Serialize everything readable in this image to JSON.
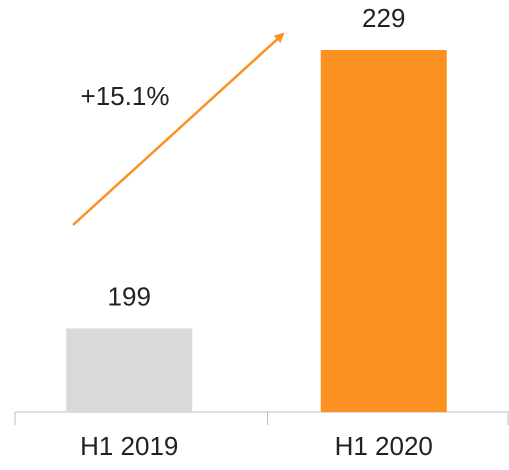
{
  "chart_data": {
    "type": "bar",
    "categories": [
      "H1 2019",
      "H1 2020"
    ],
    "values": [
      199,
      229
    ],
    "colors": [
      "#d9d9d9",
      "#fb9120"
    ],
    "ylim": [
      190,
      230
    ],
    "annotations": [
      {
        "text": "+15.1%"
      }
    ]
  }
}
